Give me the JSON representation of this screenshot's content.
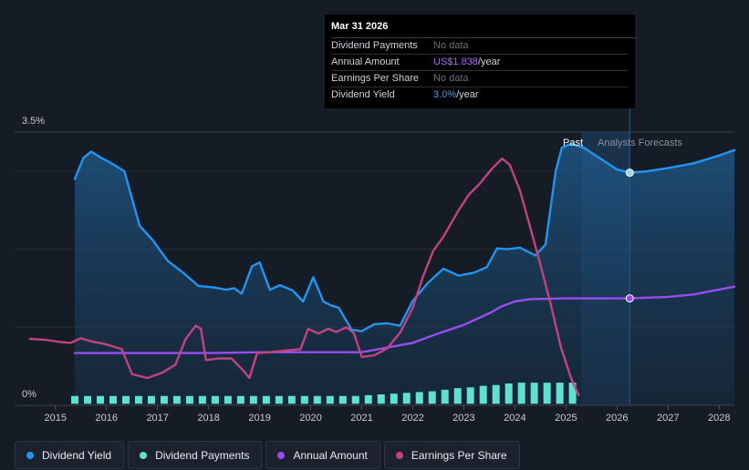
{
  "tooltip": {
    "date": "Mar 31 2026",
    "rows": [
      {
        "label": "Dividend Payments",
        "value": "No data",
        "unit": ""
      },
      {
        "label": "Annual Amount",
        "value": "US$1.838",
        "unit": "/year"
      },
      {
        "label": "Earnings Per Share",
        "value": "No data",
        "unit": ""
      },
      {
        "label": "Dividend Yield",
        "value": "3.0%",
        "unit": "/year"
      }
    ]
  },
  "labels": {
    "past": "Past",
    "forecast": "Analysts Forecasts"
  },
  "legend": [
    {
      "label": "Dividend Yield",
      "color": "#2394f0"
    },
    {
      "label": "Dividend Payments",
      "color": "#5fe0d0"
    },
    {
      "label": "Annual Amount",
      "color": "#9a4cf0"
    },
    {
      "label": "Earnings Per Share",
      "color": "#c2437f"
    }
  ],
  "colors": {
    "background": "#161c26",
    "yield": "#2394f0",
    "payments": "#5fe0d0",
    "annual": "#9a4cf0",
    "eps": "#c2437f",
    "forecast_band": "#1c3a58"
  },
  "chart_data": {
    "type": "line",
    "title": "",
    "xlabel": "",
    "ylabel": "",
    "y_tick_labels": [
      "0%",
      "3.5%"
    ],
    "ylim": [
      0,
      3.5
    ],
    "xlim": [
      2014.2,
      2028.3
    ],
    "x_ticks": [
      2015,
      2016,
      2017,
      2018,
      2019,
      2020,
      2021,
      2022,
      2023,
      2024,
      2025,
      2026,
      2027,
      2028
    ],
    "x_tick_labels": [
      "2015",
      "2016",
      "2017",
      "2018",
      "2019",
      "2020",
      "2021",
      "2022",
      "2023",
      "2024",
      "2025",
      "2026",
      "2027",
      "2028"
    ],
    "past_end": 2025.3,
    "cursor_x": 2026.25,
    "series": [
      {
        "name": "Dividend Yield",
        "unit": "%",
        "points": [
          [
            2015.38,
            2.9
          ],
          [
            2015.55,
            3.17
          ],
          [
            2015.7,
            3.25
          ],
          [
            2015.9,
            3.17
          ],
          [
            2016.1,
            3.1
          ],
          [
            2016.35,
            3.0
          ],
          [
            2016.65,
            2.3
          ],
          [
            2016.9,
            2.12
          ],
          [
            2017.2,
            1.85
          ],
          [
            2017.5,
            1.7
          ],
          [
            2017.8,
            1.53
          ],
          [
            2018.1,
            1.51
          ],
          [
            2018.35,
            1.48
          ],
          [
            2018.5,
            1.5
          ],
          [
            2018.65,
            1.43
          ],
          [
            2018.85,
            1.78
          ],
          [
            2019.0,
            1.83
          ],
          [
            2019.2,
            1.48
          ],
          [
            2019.4,
            1.54
          ],
          [
            2019.65,
            1.47
          ],
          [
            2019.85,
            1.33
          ],
          [
            2020.05,
            1.64
          ],
          [
            2020.25,
            1.33
          ],
          [
            2020.4,
            1.28
          ],
          [
            2020.55,
            1.25
          ],
          [
            2020.8,
            0.97
          ],
          [
            2021.0,
            0.95
          ],
          [
            2021.25,
            1.04
          ],
          [
            2021.5,
            1.05
          ],
          [
            2021.75,
            1.02
          ],
          [
            2022.0,
            1.34
          ],
          [
            2022.3,
            1.57
          ],
          [
            2022.6,
            1.75
          ],
          [
            2022.9,
            1.66
          ],
          [
            2023.2,
            1.7
          ],
          [
            2023.45,
            1.77
          ],
          [
            2023.65,
            2.01
          ],
          [
            2023.85,
            2.0
          ],
          [
            2024.1,
            2.02
          ],
          [
            2024.4,
            1.92
          ],
          [
            2024.6,
            2.06
          ],
          [
            2024.8,
            3.0
          ],
          [
            2024.92,
            3.3
          ],
          [
            2025.1,
            3.35
          ],
          [
            2025.35,
            3.3
          ],
          [
            2025.7,
            3.15
          ],
          [
            2026.0,
            3.02
          ],
          [
            2026.25,
            2.98
          ],
          [
            2026.6,
            3.0
          ],
          [
            2027.0,
            3.04
          ],
          [
            2027.5,
            3.1
          ],
          [
            2028.0,
            3.2
          ],
          [
            2028.3,
            3.27
          ]
        ]
      },
      {
        "name": "Annual Amount",
        "unit": "US$ (scaled)",
        "points": [
          [
            2015.38,
            0.67
          ],
          [
            2016.0,
            0.67
          ],
          [
            2017.0,
            0.67
          ],
          [
            2018.0,
            0.67
          ],
          [
            2019.0,
            0.68
          ],
          [
            2020.0,
            0.68
          ],
          [
            2021.0,
            0.68
          ],
          [
            2021.5,
            0.74
          ],
          [
            2022.0,
            0.8
          ],
          [
            2022.5,
            0.92
          ],
          [
            2023.0,
            1.03
          ],
          [
            2023.5,
            1.18
          ],
          [
            2023.75,
            1.27
          ],
          [
            2024.0,
            1.33
          ],
          [
            2024.3,
            1.36
          ],
          [
            2025.0,
            1.37
          ],
          [
            2026.0,
            1.37
          ],
          [
            2026.25,
            1.37
          ],
          [
            2027.0,
            1.39
          ],
          [
            2027.5,
            1.42
          ],
          [
            2028.3,
            1.52
          ]
        ]
      },
      {
        "name": "Earnings Per Share",
        "unit": "scaled",
        "points": [
          [
            2014.5,
            0.85
          ],
          [
            2014.8,
            0.84
          ],
          [
            2015.1,
            0.81
          ],
          [
            2015.3,
            0.8
          ],
          [
            2015.5,
            0.86
          ],
          [
            2015.7,
            0.82
          ],
          [
            2016.0,
            0.78
          ],
          [
            2016.3,
            0.72
          ],
          [
            2016.5,
            0.4
          ],
          [
            2016.8,
            0.35
          ],
          [
            2017.1,
            0.42
          ],
          [
            2017.35,
            0.52
          ],
          [
            2017.55,
            0.85
          ],
          [
            2017.75,
            1.02
          ],
          [
            2017.85,
            0.98
          ],
          [
            2017.95,
            0.58
          ],
          [
            2018.2,
            0.6
          ],
          [
            2018.45,
            0.6
          ],
          [
            2018.7,
            0.43
          ],
          [
            2018.8,
            0.35
          ],
          [
            2018.95,
            0.67
          ],
          [
            2019.2,
            0.68
          ],
          [
            2019.5,
            0.7
          ],
          [
            2019.8,
            0.72
          ],
          [
            2019.95,
            0.98
          ],
          [
            2020.15,
            0.92
          ],
          [
            2020.35,
            0.98
          ],
          [
            2020.5,
            0.94
          ],
          [
            2020.7,
            1.0
          ],
          [
            2020.85,
            0.92
          ],
          [
            2021.0,
            0.62
          ],
          [
            2021.25,
            0.64
          ],
          [
            2021.5,
            0.73
          ],
          [
            2021.75,
            0.93
          ],
          [
            2022.0,
            1.25
          ],
          [
            2022.2,
            1.65
          ],
          [
            2022.4,
            1.98
          ],
          [
            2022.6,
            2.16
          ],
          [
            2022.9,
            2.5
          ],
          [
            2023.1,
            2.7
          ],
          [
            2023.3,
            2.83
          ],
          [
            2023.55,
            3.03
          ],
          [
            2023.75,
            3.16
          ],
          [
            2023.9,
            3.08
          ],
          [
            2024.1,
            2.75
          ],
          [
            2024.3,
            2.28
          ],
          [
            2024.5,
            1.8
          ],
          [
            2024.7,
            1.3
          ],
          [
            2024.9,
            0.75
          ],
          [
            2025.1,
            0.35
          ],
          [
            2025.25,
            0.13
          ]
        ]
      }
    ],
    "bars": {
      "name": "Dividend Payments",
      "x": [
        2015.38,
        2015.63,
        2015.88,
        2016.13,
        2016.38,
        2016.63,
        2016.88,
        2017.13,
        2017.38,
        2017.63,
        2017.88,
        2018.13,
        2018.38,
        2018.63,
        2018.88,
        2019.13,
        2019.38,
        2019.63,
        2019.88,
        2020.13,
        2020.38,
        2020.63,
        2020.88,
        2021.13,
        2021.38,
        2021.63,
        2021.88,
        2022.13,
        2022.38,
        2022.63,
        2022.88,
        2023.13,
        2023.38,
        2023.63,
        2023.88,
        2024.13,
        2024.38,
        2024.63,
        2024.88,
        2025.13
      ],
      "values": [
        0.1,
        0.1,
        0.1,
        0.1,
        0.1,
        0.1,
        0.1,
        0.1,
        0.1,
        0.1,
        0.1,
        0.1,
        0.1,
        0.1,
        0.1,
        0.1,
        0.1,
        0.1,
        0.1,
        0.1,
        0.1,
        0.1,
        0.1,
        0.11,
        0.12,
        0.13,
        0.14,
        0.15,
        0.16,
        0.18,
        0.2,
        0.21,
        0.23,
        0.24,
        0.26,
        0.27,
        0.27,
        0.27,
        0.27,
        0.27
      ]
    }
  }
}
